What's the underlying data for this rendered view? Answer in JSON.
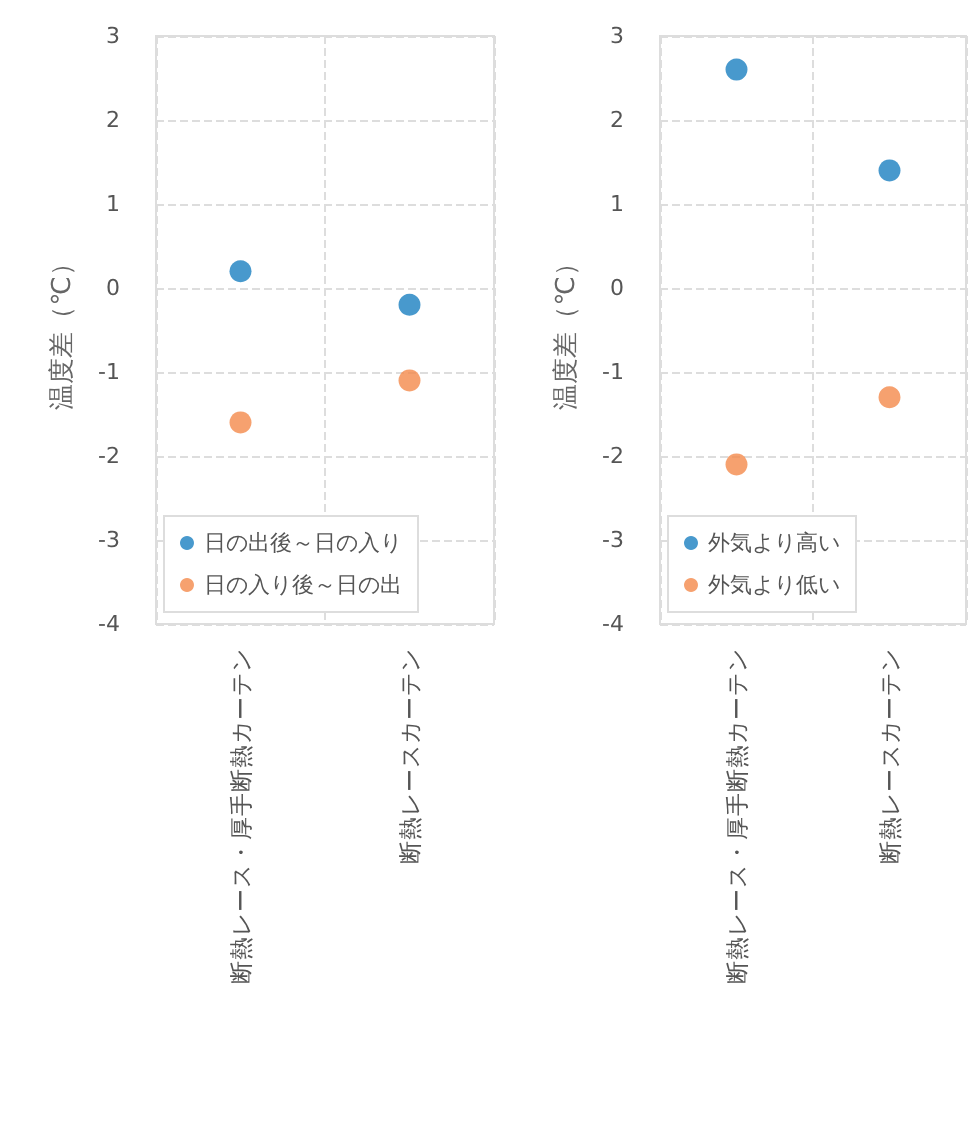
{
  "chart_data": [
    {
      "type": "scatter",
      "categories": [
        "断熱レース・厚手断熱カーテン",
        "断熱レースカーテン"
      ],
      "ylabel": "温度差（℃）",
      "ylim": [
        -4,
        3
      ],
      "yticks": [
        -4,
        -3,
        -2,
        -1,
        0,
        1,
        2,
        3
      ],
      "grid": true,
      "legend": "bottom",
      "marker": "circle",
      "series": [
        {
          "name": "日の出後～日の入り",
          "color": "#1a7fc0",
          "values": [
            0.2,
            -0.2
          ]
        },
        {
          "name": "日の入り後～日の出",
          "color": "#f4894b",
          "values": [
            -1.6,
            -1.1
          ]
        }
      ]
    },
    {
      "type": "scatter",
      "categories": [
        "断熱レース・厚手断熱カーテン",
        "断熱レースカーテン"
      ],
      "ylabel": "温度差（℃）",
      "ylim": [
        -4,
        3
      ],
      "yticks": [
        -4,
        -3,
        -2,
        -1,
        0,
        1,
        2,
        3
      ],
      "grid": true,
      "legend": "bottom",
      "marker": "circle",
      "series": [
        {
          "name": "外気より高い",
          "color": "#1a7fc0",
          "values": [
            2.6,
            1.4
          ]
        },
        {
          "name": "外気より低い",
          "color": "#f4894b",
          "values": [
            -2.1,
            -1.3
          ]
        }
      ]
    }
  ]
}
